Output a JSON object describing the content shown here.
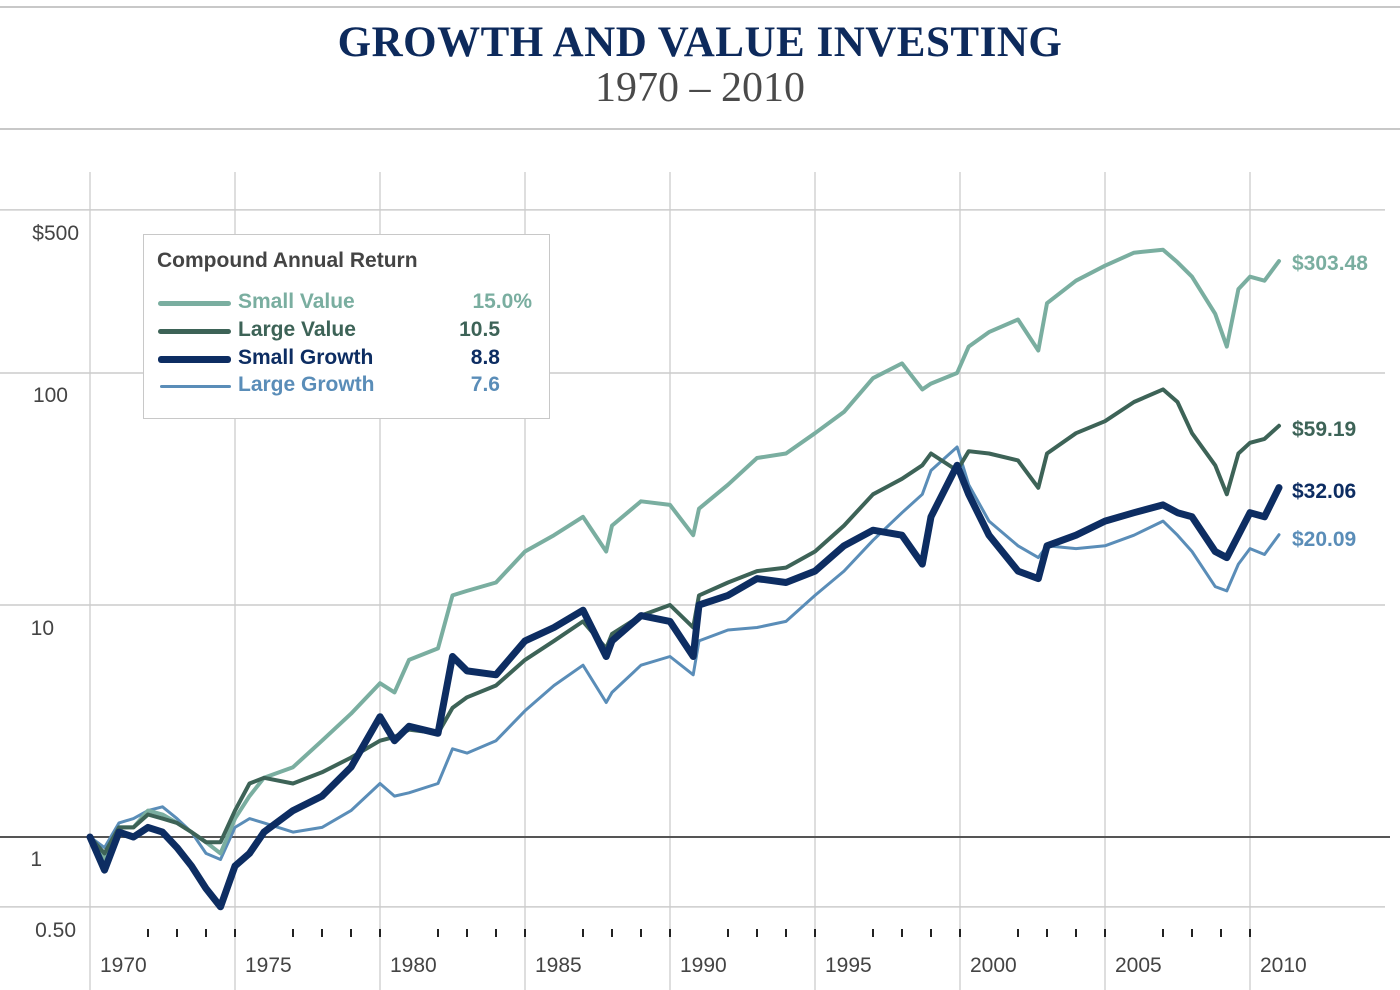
{
  "header": {
    "title": "GROWTH AND VALUE INVESTING",
    "subtitle": "1970 – 2010"
  },
  "legend": {
    "title": "Compound Annual Return",
    "items": [
      {
        "label": "Small Value",
        "value": "15.0%",
        "color": "#7aaea0"
      },
      {
        "label": "Large Value",
        "value": "10.5",
        "color": "#3d6357"
      },
      {
        "label": "Small Growth",
        "value": "8.8",
        "color": "#0d2d62"
      },
      {
        "label": "Large Growth",
        "value": "7.6",
        "color": "#5a8db8"
      }
    ]
  },
  "chart_data": {
    "type": "line",
    "title": "GROWTH AND VALUE INVESTING",
    "subtitle": "1970 – 2010",
    "xlabel": "",
    "ylabel": "",
    "yscale": "log",
    "ylim": [
      0.45,
      650
    ],
    "xlim": [
      1970,
      2011
    ],
    "grid": true,
    "reference_line": 1,
    "y_ticks": [
      {
        "value": 500,
        "label": "$500"
      },
      {
        "value": 100,
        "label": "100"
      },
      {
        "value": 10,
        "label": "10"
      },
      {
        "value": 1,
        "label": "1"
      },
      {
        "value": 0.5,
        "label": "0.50"
      }
    ],
    "x_tick_labels": [
      "1970",
      "1975",
      "1980",
      "1985",
      "1990",
      "1995",
      "2000",
      "2005",
      "2010"
    ],
    "legend_placement": "top-left",
    "legend_title": "Compound Annual Return",
    "x": [
      1970,
      1970.5,
      1971,
      1971.5,
      1972,
      1972.5,
      1973,
      1973.5,
      1974,
      1974.5,
      1975,
      1975.5,
      1976,
      1977,
      1978,
      1979,
      1980,
      1980.5,
      1981,
      1982,
      1982.5,
      1983,
      1984,
      1985,
      1986,
      1987,
      1987.8,
      1988,
      1989,
      1990,
      1990.8,
      1991,
      1992,
      1993,
      1994,
      1995,
      1996,
      1997,
      1998,
      1998.7,
      1999,
      1999.9,
      2000.3,
      2001,
      2002,
      2002.7,
      2003,
      2004,
      2005,
      2006,
      2007,
      2007.5,
      2008,
      2008.8,
      2009.2,
      2009.6,
      2010,
      2010.5,
      2011
    ],
    "series": [
      {
        "name": "Small Value",
        "color": "#7aaea0",
        "final_label": "$303.48",
        "values": [
          1.0,
          0.8,
          1.1,
          1.1,
          1.3,
          1.25,
          1.15,
          1.05,
          0.95,
          0.85,
          1.2,
          1.5,
          1.8,
          2.0,
          2.6,
          3.4,
          4.6,
          4.2,
          5.8,
          6.5,
          11.0,
          11.5,
          12.5,
          17.0,
          20.0,
          24.0,
          17.0,
          22.0,
          28.0,
          27.0,
          20.0,
          26.0,
          33.0,
          43.0,
          45.0,
          55.0,
          68.0,
          95.0,
          110.0,
          85.0,
          90.0,
          100.0,
          130.0,
          150.0,
          170.0,
          125.0,
          200.0,
          250.0,
          290.0,
          330.0,
          340.0,
          300.0,
          260.0,
          180.0,
          130.0,
          230.0,
          260.0,
          250.0,
          303.48
        ]
      },
      {
        "name": "Large Value",
        "color": "#3d6357",
        "final_label": "$59.19",
        "values": [
          1.0,
          0.85,
          1.1,
          1.1,
          1.25,
          1.2,
          1.15,
          1.05,
          0.95,
          0.95,
          1.3,
          1.7,
          1.8,
          1.7,
          1.9,
          2.2,
          2.6,
          2.7,
          2.9,
          2.8,
          3.6,
          4.0,
          4.5,
          5.8,
          7.0,
          8.5,
          6.5,
          7.5,
          9.0,
          10.0,
          8.0,
          11.0,
          12.5,
          14.0,
          14.5,
          17.0,
          22.0,
          30.0,
          35.0,
          40.0,
          45.0,
          38.0,
          46.0,
          45.0,
          42.0,
          32.0,
          45.0,
          55.0,
          62.0,
          75.0,
          85.0,
          75.0,
          55.0,
          40.0,
          30.0,
          45.0,
          50.0,
          52.0,
          59.19
        ]
      },
      {
        "name": "Small Growth",
        "color": "#0d2d62",
        "final_label": "$32.06",
        "values": [
          1.0,
          0.72,
          1.05,
          1.0,
          1.1,
          1.05,
          0.9,
          0.75,
          0.6,
          0.5,
          0.75,
          0.85,
          1.05,
          1.3,
          1.5,
          2.0,
          3.3,
          2.6,
          3.0,
          2.8,
          6.0,
          5.2,
          5.0,
          7.0,
          8.0,
          9.5,
          6.0,
          7.0,
          9.0,
          8.5,
          6.0,
          10.0,
          11.0,
          13.0,
          12.5,
          14.0,
          18.0,
          21.0,
          20.0,
          15.0,
          24.0,
          40.0,
          30.0,
          20.0,
          14.0,
          13.0,
          18.0,
          20.0,
          23.0,
          25.0,
          27.0,
          25.0,
          24.0,
          17.0,
          16.0,
          20.0,
          25.0,
          24.0,
          32.06
        ]
      },
      {
        "name": "Large Growth",
        "color": "#5a8db8",
        "final_label": "$20.09",
        "values": [
          1.0,
          0.9,
          1.15,
          1.2,
          1.3,
          1.35,
          1.2,
          1.05,
          0.85,
          0.8,
          1.1,
          1.2,
          1.15,
          1.05,
          1.1,
          1.3,
          1.7,
          1.5,
          1.55,
          1.7,
          2.4,
          2.3,
          2.6,
          3.5,
          4.5,
          5.5,
          3.8,
          4.2,
          5.5,
          6.0,
          5.0,
          7.0,
          7.8,
          8.0,
          8.5,
          11.0,
          14.0,
          19.0,
          25.0,
          30.0,
          38.0,
          48.0,
          33.0,
          23.0,
          18.0,
          16.0,
          18.0,
          17.5,
          18.0,
          20.0,
          23.0,
          20.0,
          17.0,
          12.0,
          11.5,
          15.0,
          17.5,
          16.5,
          20.09
        ]
      }
    ]
  }
}
